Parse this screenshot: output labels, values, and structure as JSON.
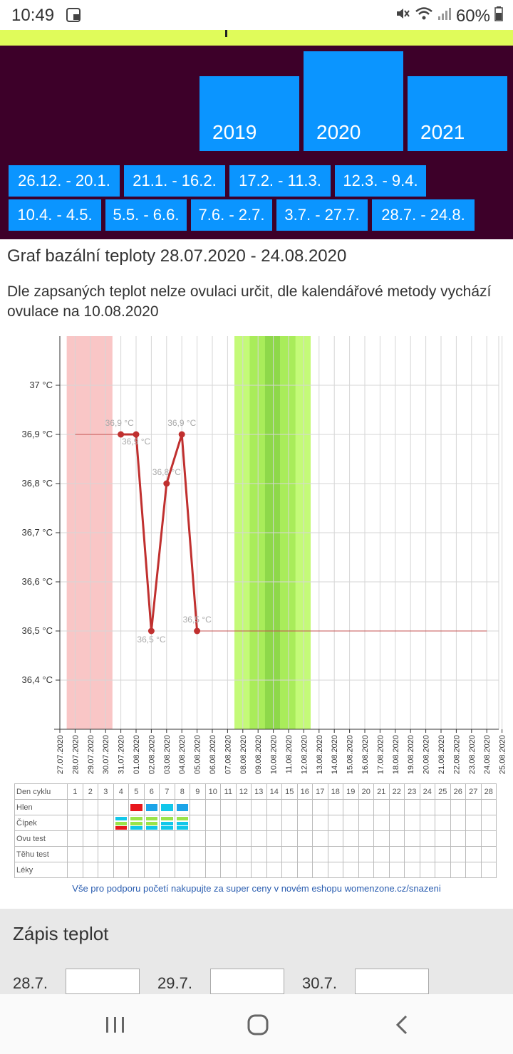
{
  "status": {
    "time": "10:49",
    "battery": "60%"
  },
  "years": [
    {
      "label": "2019"
    },
    {
      "label": "2020"
    },
    {
      "label": "2021"
    }
  ],
  "periods_row1": [
    "26.12. - 20.1.",
    "21.1. - 16.2.",
    "17.2. - 11.3.",
    "12.3. - 9.4."
  ],
  "periods_row2": [
    "10.4. - 4.5.",
    "5.5. - 6.6.",
    "7.6. - 2.7.",
    "3.7. - 27.7.",
    "28.7. - 24.8."
  ],
  "page": {
    "title": "Graf bazální teploty 28.07.2020 - 24.08.2020",
    "info": "Dle zapsaných teplot nelze ovulaci určit, dle kalendářové metody vychází ovulace na 10.08.2020"
  },
  "chart_data": {
    "type": "line",
    "x_dates": [
      "27.07.2020",
      "28.07.2020",
      "29.07.2020",
      "30.07.2020",
      "31.07.2020",
      "01.08.2020",
      "02.08.2020",
      "03.08.2020",
      "04.08.2020",
      "05.08.2020",
      "06.08.2020",
      "07.08.2020",
      "08.08.2020",
      "09.08.2020",
      "10.08.2020",
      "11.08.2020",
      "12.08.2020",
      "13.08.2020",
      "14.08.2020",
      "15.08.2020",
      "16.08.2020",
      "17.08.2020",
      "18.08.2020",
      "19.08.2020",
      "20.08.2020",
      "21.08.2020",
      "22.08.2020",
      "23.08.2020",
      "24.08.2020",
      "25.08.2020"
    ],
    "y_ticks": [
      "37 °C",
      "36,9 °C",
      "36,8 °C",
      "36,7 °C",
      "36,6 °C",
      "36,5 °C",
      "36,4 °C"
    ],
    "ylim": [
      36.3,
      37.1
    ],
    "series": [
      {
        "values": [
          {
            "x": "31.07.2020",
            "y": 36.9,
            "label": "36,9 °C"
          },
          {
            "x": "01.08.2020",
            "y": 36.9,
            "label": "36,9 °C"
          },
          {
            "x": "02.08.2020",
            "y": 36.5,
            "label": "36,5 °C"
          },
          {
            "x": "03.08.2020",
            "y": 36.8,
            "label": "36,8 °C"
          },
          {
            "x": "04.08.2020",
            "y": 36.9,
            "label": "36,9 °C"
          },
          {
            "x": "05.08.2020",
            "y": 36.5,
            "label": "36,5 °C"
          }
        ]
      }
    ],
    "bands": [
      {
        "from": "27.07.2020",
        "to": "30.07.2020",
        "color": "#f9c6c6"
      },
      {
        "from": "07.08.2020",
        "to": "12.08.2020",
        "color": "#c4fa78"
      },
      {
        "from": "08.08.2020",
        "to": "09.08.2020",
        "color": "#a9ec5a"
      },
      {
        "from": "09.08.2020",
        "to": "10.08.2020",
        "color": "#8ed84a"
      },
      {
        "from": "10.08.2020",
        "to": "11.08.2020",
        "color": "#a9ec5a"
      }
    ],
    "line_color": "#c0302f"
  },
  "cycle_table": {
    "rows": [
      "Den cyklu",
      "Hlen",
      "Čípek",
      "Ovu test",
      "Těhu test",
      "Léky"
    ],
    "days": [
      "1",
      "2",
      "3",
      "4",
      "5",
      "6",
      "7",
      "8",
      "9",
      "10",
      "11",
      "12",
      "13",
      "14",
      "15",
      "16",
      "17",
      "18",
      "19",
      "20",
      "21",
      "22",
      "23",
      "24",
      "25",
      "26",
      "27",
      "28"
    ]
  },
  "promo": "Vše pro podporu početí nakupujte za super ceny v novém eshopu womenzone.cz/snazeni",
  "form": {
    "heading": "Zápis teplot",
    "dates": [
      "28.7.",
      "29.7.",
      "30.7."
    ]
  }
}
